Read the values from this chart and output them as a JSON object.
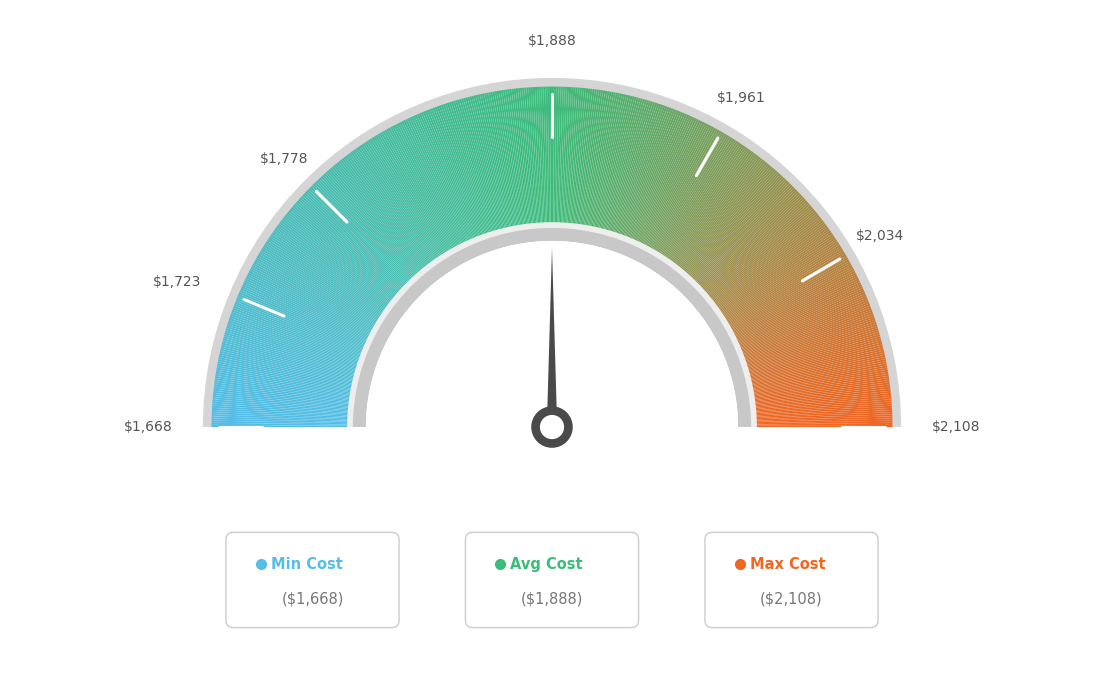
{
  "min_val": 1668,
  "max_val": 2108,
  "avg_val": 1888,
  "tick_labels": [
    "$1,668",
    "$1,723",
    "$1,778",
    "$1,888",
    "$1,961",
    "$2,034",
    "$2,108"
  ],
  "tick_values": [
    1668,
    1723,
    1778,
    1888,
    1961,
    2034,
    2108
  ],
  "legend_min_label": "Min Cost",
  "legend_avg_label": "Avg Cost",
  "legend_max_label": "Max Cost",
  "legend_min_value": "($1,668)",
  "legend_avg_value": "($1,888)",
  "legend_max_value": "($2,108)",
  "color_min": "#55bde8",
  "color_avg": "#3dbb7a",
  "color_max": "#f26522",
  "background_color": "#ffffff"
}
